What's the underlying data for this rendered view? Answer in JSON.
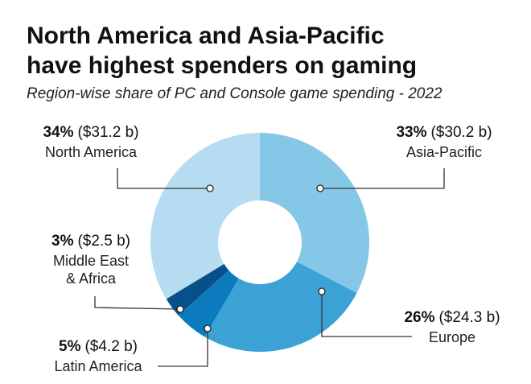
{
  "header": {
    "title_line1": "North America and Asia-Pacific",
    "title_line2": "have highest spenders on gaming",
    "subtitle": "Region-wise share of PC and Console game spending - 2022"
  },
  "chart_data": {
    "type": "pie",
    "donut": true,
    "title": "North America and Asia-Pacific have highest spenders on gaming",
    "subtitle": "Region-wise share of PC and Console game spending - 2022",
    "slices": [
      {
        "name": "Asia-Pacific",
        "percent": 33,
        "percent_label": "33%",
        "value_label": "($30.2 b)",
        "value": 30.2,
        "color": "#84c7e6"
      },
      {
        "name": "Europe",
        "percent": 26,
        "percent_label": "26%",
        "value_label": "($24.3 b)",
        "value": 24.3,
        "color": "#3ca2d6"
      },
      {
        "name": "Latin America",
        "percent": 5,
        "percent_label": "5%",
        "value_label": "($4.2 b)",
        "value": 4.2,
        "color": "#0b7bbd"
      },
      {
        "name_lines": [
          "Middle East",
          "& Africa"
        ],
        "name": "Middle East & Africa",
        "percent": 3,
        "percent_label": "3%",
        "value_label": "($2.5 b)",
        "value": 2.5,
        "color": "#07508a"
      },
      {
        "name": "North America",
        "percent": 34,
        "percent_label": "34%",
        "value_label": "($31.2 b)",
        "value": 31.2,
        "color": "#b5dcf0"
      }
    ]
  }
}
